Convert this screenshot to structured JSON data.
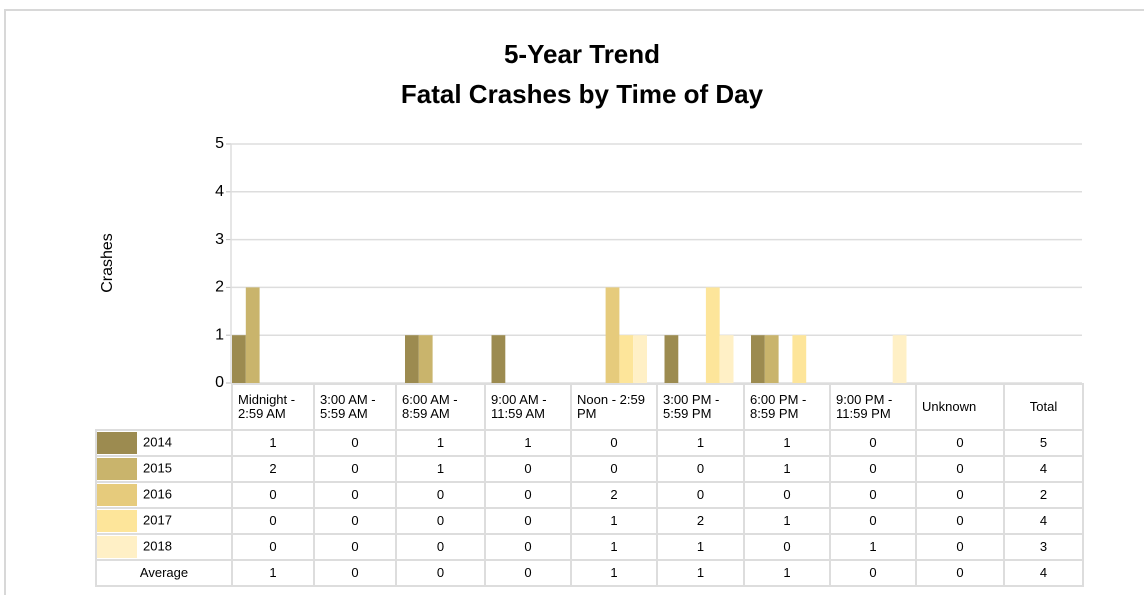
{
  "chart_data": {
    "type": "bar",
    "title": "5-Year Trend",
    "subtitle": "Fatal Crashes by Time of Day",
    "y_label": "Crashes",
    "categories": [
      "Midnight - 2:59 AM",
      "3:00 AM - 5:59 AM",
      "6:00 AM - 8:59 AM",
      "9:00 AM - 11:59 AM",
      "Noon - 2:59 PM",
      "3:00 PM - 5:59 PM",
      "6:00 PM - 8:59 PM",
      "9:00 PM - 11:59 PM",
      "Unknown"
    ],
    "series": [
      {
        "name": "2014",
        "color": "#9c8b50",
        "values": [
          1,
          0,
          1,
          1,
          0,
          1,
          1,
          0,
          0
        ]
      },
      {
        "name": "2015",
        "color": "#c9b46c",
        "values": [
          2,
          0,
          1,
          0,
          0,
          0,
          1,
          0,
          0
        ]
      },
      {
        "name": "2016",
        "color": "#e6cb7c",
        "values": [
          0,
          0,
          0,
          0,
          2,
          0,
          0,
          0,
          0
        ]
      },
      {
        "name": "2017",
        "color": "#fde59a",
        "values": [
          0,
          0,
          0,
          0,
          1,
          2,
          1,
          0,
          0
        ]
      },
      {
        "name": "2018",
        "color": "#fff0c6",
        "values": [
          0,
          0,
          0,
          0,
          1,
          1,
          0,
          1,
          0
        ]
      }
    ],
    "ylim": [
      0,
      5
    ],
    "yticks": [
      0,
      1,
      2,
      3,
      4,
      5
    ],
    "grid": true,
    "table": {
      "total_label": "Total",
      "totals": [
        5,
        4,
        2,
        4,
        3
      ],
      "average_label": "Average",
      "averages": [
        1,
        0,
        0,
        0,
        1,
        1,
        1,
        0,
        0
      ],
      "average_total": 4
    }
  }
}
